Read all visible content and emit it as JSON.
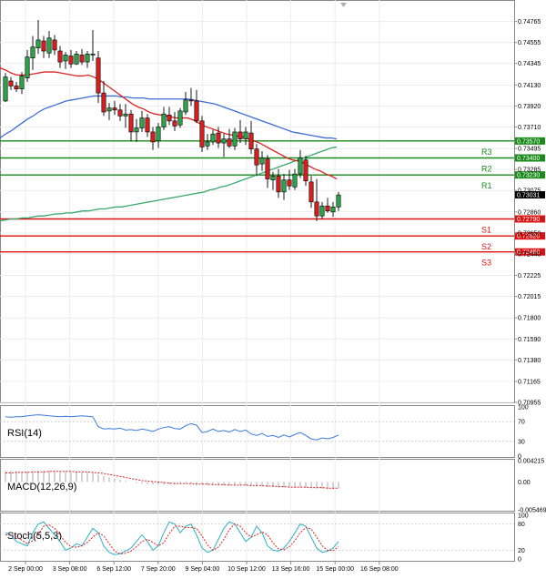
{
  "chart_data": {
    "type": "candlestick",
    "price_axis": {
      "ticks": [
        "0.74765",
        "0.74555",
        "0.74345",
        "0.74130",
        "0.73920",
        "0.73710",
        "0.73495",
        "0.73285",
        "0.73075",
        "0.72860",
        "0.72650",
        "0.72440",
        "0.72225",
        "0.72015",
        "0.71800",
        "0.71590",
        "0.71380",
        "0.71165",
        "0.70955"
      ],
      "range": [
        0.70955,
        0.7498
      ]
    },
    "time_axis": {
      "labels": [
        "2 Sep 00:00",
        "3 Sep 08:00",
        "6 Sep 12:00",
        "7 Sep 20:00",
        "9 Sep 04:00",
        "10 Sep 12:00",
        "13 Sep 16:00",
        "15 Sep 00:00",
        "16 Sep 08:00"
      ]
    },
    "current_price": "0.73031",
    "levels": [
      {
        "name": "R3",
        "value": 0.7357,
        "label": "0.73570",
        "color": "#1a8a1a"
      },
      {
        "name": "R2",
        "value": 0.734,
        "label": "0.73400",
        "color": "#1a8a1a"
      },
      {
        "name": "R1",
        "value": 0.7323,
        "label": "0.73230",
        "color": "#1a8a1a"
      },
      {
        "name": "S1",
        "value": 0.7279,
        "label": "0.72790",
        "color": "#dd1111"
      },
      {
        "name": "S2",
        "value": 0.7262,
        "label": "0.72620",
        "color": "#dd1111"
      },
      {
        "name": "S3",
        "value": 0.7246,
        "label": "0.72460",
        "color": "#dd1111"
      }
    ],
    "candles": [
      [
        0.7397,
        0.7425,
        0.7396,
        0.7421
      ],
      [
        0.7417,
        0.7421,
        0.7408,
        0.7412
      ],
      [
        0.7412,
        0.7416,
        0.7406,
        0.7409
      ],
      [
        0.7409,
        0.7426,
        0.7404,
        0.7422
      ],
      [
        0.742,
        0.7448,
        0.7416,
        0.7441
      ],
      [
        0.744,
        0.7462,
        0.7428,
        0.7451
      ],
      [
        0.745,
        0.7478,
        0.7444,
        0.7458
      ],
      [
        0.7457,
        0.7462,
        0.744,
        0.7447
      ],
      [
        0.7445,
        0.7467,
        0.744,
        0.746
      ],
      [
        0.7458,
        0.7463,
        0.7443,
        0.7448
      ],
      [
        0.7447,
        0.7452,
        0.743,
        0.7436
      ],
      [
        0.7437,
        0.7446,
        0.7429,
        0.7443
      ],
      [
        0.7442,
        0.7448,
        0.743,
        0.7434
      ],
      [
        0.7434,
        0.7447,
        0.7433,
        0.7444
      ],
      [
        0.7443,
        0.7449,
        0.7433,
        0.7436
      ],
      [
        0.7436,
        0.7447,
        0.743,
        0.7444
      ],
      [
        0.7443,
        0.7468,
        0.7437,
        0.7444
      ],
      [
        0.744,
        0.7447,
        0.7395,
        0.7405
      ],
      [
        0.7405,
        0.7417,
        0.7382,
        0.7386
      ],
      [
        0.7387,
        0.7395,
        0.7378,
        0.739
      ],
      [
        0.739,
        0.7397,
        0.7383,
        0.7388
      ],
      [
        0.7388,
        0.7394,
        0.7377,
        0.7382
      ],
      [
        0.7382,
        0.7394,
        0.737,
        0.7384
      ],
      [
        0.7384,
        0.7388,
        0.7357,
        0.7366
      ],
      [
        0.7366,
        0.7379,
        0.7356,
        0.737
      ],
      [
        0.737,
        0.7387,
        0.7366,
        0.738
      ],
      [
        0.738,
        0.7384,
        0.7361,
        0.7366
      ],
      [
        0.7366,
        0.7371,
        0.7348,
        0.7356
      ],
      [
        0.7357,
        0.7375,
        0.735,
        0.7371
      ],
      [
        0.7371,
        0.7391,
        0.7368,
        0.7384
      ],
      [
        0.7383,
        0.7391,
        0.7373,
        0.7377
      ],
      [
        0.7377,
        0.7386,
        0.7367,
        0.7372
      ],
      [
        0.7373,
        0.739,
        0.737,
        0.7387
      ],
      [
        0.7386,
        0.7406,
        0.7383,
        0.7398
      ],
      [
        0.7398,
        0.741,
        0.7392,
        0.7397
      ],
      [
        0.7397,
        0.7408,
        0.7375,
        0.7377
      ],
      [
        0.7377,
        0.7382,
        0.7346,
        0.7351
      ],
      [
        0.7352,
        0.7364,
        0.7348,
        0.7356
      ],
      [
        0.7356,
        0.7368,
        0.7353,
        0.7364
      ],
      [
        0.7365,
        0.7371,
        0.735,
        0.7355
      ],
      [
        0.7355,
        0.7364,
        0.7341,
        0.7359
      ],
      [
        0.7359,
        0.7369,
        0.735,
        0.7352
      ],
      [
        0.7352,
        0.737,
        0.7348,
        0.7366
      ],
      [
        0.7366,
        0.7378,
        0.7355,
        0.7359
      ],
      [
        0.7359,
        0.7371,
        0.7353,
        0.7366
      ],
      [
        0.7365,
        0.7377,
        0.7344,
        0.7349
      ],
      [
        0.7349,
        0.7354,
        0.7322,
        0.7333
      ],
      [
        0.7334,
        0.7347,
        0.7327,
        0.734
      ],
      [
        0.7339,
        0.7343,
        0.731,
        0.7319
      ],
      [
        0.7318,
        0.7326,
        0.7308,
        0.7322
      ],
      [
        0.7322,
        0.7329,
        0.73,
        0.7306
      ],
      [
        0.7306,
        0.7324,
        0.7298,
        0.7318
      ],
      [
        0.7318,
        0.7328,
        0.7308,
        0.7312
      ],
      [
        0.7311,
        0.7329,
        0.7308,
        0.7324
      ],
      [
        0.7324,
        0.7348,
        0.732,
        0.734
      ],
      [
        0.7338,
        0.7342,
        0.7312,
        0.7317
      ],
      [
        0.7316,
        0.7322,
        0.729,
        0.7296
      ],
      [
        0.7296,
        0.7319,
        0.7277,
        0.7282
      ],
      [
        0.7282,
        0.7296,
        0.7279,
        0.7292
      ],
      [
        0.7292,
        0.73,
        0.7285,
        0.7287
      ],
      [
        0.7286,
        0.7296,
        0.7281,
        0.7291
      ],
      [
        0.7291,
        0.7306,
        0.7287,
        0.7303
      ]
    ],
    "sma_red": [
      0.743,
      0.7428,
      0.7425,
      0.7423,
      0.7423,
      0.7423,
      0.7424,
      0.7425,
      0.7426,
      0.7426,
      0.7426,
      0.7425,
      0.7424,
      0.7423,
      0.7422,
      0.7422,
      0.7423,
      0.7421,
      0.7418,
      0.7414,
      0.741,
      0.7406,
      0.7402,
      0.7398,
      0.7394,
      0.7391,
      0.7389,
      0.7386,
      0.7384,
      0.7383,
      0.7382,
      0.7381,
      0.738,
      0.738,
      0.738,
      0.7378,
      0.7375,
      0.7372,
      0.737,
      0.7368,
      0.7366,
      0.7364,
      0.7363,
      0.7362,
      0.7361,
      0.7359,
      0.7357,
      0.7355,
      0.7352,
      0.7349,
      0.7346,
      0.7343,
      0.734,
      0.7338,
      0.7337,
      0.7335,
      0.7332,
      0.7329,
      0.7327,
      0.7324,
      0.7322,
      0.7319
    ],
    "sma_blue": [
      0.736,
      0.7364,
      0.7367,
      0.7371,
      0.7375,
      0.7379,
      0.7382,
      0.7386,
      0.7389,
      0.7391,
      0.7393,
      0.7395,
      0.7397,
      0.7398,
      0.7399,
      0.74,
      0.7401,
      0.7402,
      0.7402,
      0.7402,
      0.7402,
      0.7402,
      0.7401,
      0.7401,
      0.74,
      0.74,
      0.74,
      0.7399,
      0.7399,
      0.7399,
      0.7399,
      0.7399,
      0.7399,
      0.7399,
      0.7399,
      0.7398,
      0.7397,
      0.7396,
      0.7395,
      0.7394,
      0.7392,
      0.739,
      0.7388,
      0.7386,
      0.7384,
      0.7382,
      0.738,
      0.7378,
      0.7376,
      0.7374,
      0.7372,
      0.737,
      0.7368,
      0.7366,
      0.7365,
      0.7364,
      0.7363,
      0.7362,
      0.7361,
      0.736,
      0.736,
      0.7359
    ],
    "sma_green": [
      0.7277,
      0.7278,
      0.7279,
      0.7279,
      0.728,
      0.728,
      0.7281,
      0.7282,
      0.7282,
      0.7283,
      0.7284,
      0.7284,
      0.7285,
      0.7285,
      0.7286,
      0.7287,
      0.7287,
      0.7288,
      0.7289,
      0.7289,
      0.729,
      0.7291,
      0.7291,
      0.7292,
      0.7293,
      0.7294,
      0.7295,
      0.7296,
      0.7297,
      0.7298,
      0.7299,
      0.73,
      0.7301,
      0.7302,
      0.7303,
      0.7304,
      0.7305,
      0.7306,
      0.7308,
      0.7309,
      0.7311,
      0.7312,
      0.7314,
      0.7316,
      0.7318,
      0.732,
      0.7322,
      0.7324,
      0.7326,
      0.7328,
      0.733,
      0.7332,
      0.7334,
      0.7336,
      0.7338,
      0.734,
      0.7342,
      0.7344,
      0.7346,
      0.7348,
      0.735,
      0.7351
    ],
    "rsi": {
      "label": "RSI(14)",
      "ticks": [
        "100",
        "70",
        "30",
        "0"
      ],
      "range": [
        0,
        100
      ],
      "values": [
        80,
        79,
        80,
        80,
        82,
        83,
        84,
        83,
        82,
        81,
        80,
        81,
        80,
        81,
        82,
        81,
        80,
        60,
        55,
        56,
        55,
        57,
        53,
        54,
        52,
        55,
        53,
        50,
        55,
        58,
        60,
        56,
        55,
        62,
        66,
        63,
        48,
        50,
        55,
        50,
        52,
        49,
        54,
        50,
        53,
        45,
        42,
        46,
        40,
        42,
        38,
        43,
        39,
        44,
        48,
        42,
        35,
        33,
        37,
        35,
        38,
        43
      ]
    },
    "macd": {
      "label": "MACD(12,26,9)",
      "ticks": [
        "0.004215",
        "0.00",
        "-0.005469"
      ],
      "range": [
        -0.005469,
        0.004215
      ],
      "histogram": [
        0.0022,
        0.0022,
        0.0021,
        0.0021,
        0.0021,
        0.0021,
        0.0022,
        0.0022,
        0.0022,
        0.0022,
        0.0021,
        0.0021,
        0.002,
        0.002,
        0.0019,
        0.0019,
        0.0018,
        0.0015,
        0.0012,
        0.0009,
        0.0006,
        0.0004,
        0.0002,
        0.0,
        -0.0002,
        -0.0003,
        -0.0004,
        -0.0005,
        -0.0005,
        -0.0005,
        -0.0005,
        -0.0005,
        -0.0004,
        -0.0003,
        -0.0003,
        -0.0004,
        -0.0005,
        -0.0006,
        -0.0006,
        -0.0007,
        -0.0007,
        -0.0007,
        -0.0007,
        -0.0007,
        -0.0007,
        -0.0008,
        -0.0009,
        -0.0009,
        -0.001,
        -0.001,
        -0.0011,
        -0.0011,
        -0.0011,
        -0.0011,
        -0.001,
        -0.0011,
        -0.0012,
        -0.0013,
        -0.0013,
        -0.0014,
        -0.0014,
        -0.0013
      ],
      "signal": [
        0.0018,
        0.0018,
        0.0019,
        0.0019,
        0.0019,
        0.002,
        0.002,
        0.002,
        0.0021,
        0.0021,
        0.0021,
        0.0021,
        0.0021,
        0.002,
        0.002,
        0.002,
        0.0019,
        0.0018,
        0.0017,
        0.0015,
        0.0013,
        0.0011,
        0.0009,
        0.0007,
        0.0005,
        0.0003,
        0.0002,
        0.0001,
        0.0,
        -0.0001,
        -0.0002,
        -0.0003,
        -0.0003,
        -0.0003,
        -0.0003,
        -0.0004,
        -0.0004,
        -0.0004,
        -0.0005,
        -0.0005,
        -0.0005,
        -0.0006,
        -0.0006,
        -0.0006,
        -0.0006,
        -0.0007,
        -0.0007,
        -0.0007,
        -0.0008,
        -0.0008,
        -0.0009,
        -0.0009,
        -0.001,
        -0.001,
        -0.001,
        -0.001,
        -0.0011,
        -0.0011,
        -0.0011,
        -0.0012,
        -0.0012,
        -0.0012
      ]
    },
    "stoch": {
      "label": "Stoch(5,5,3)",
      "ticks": [
        "100",
        "80",
        "20",
        "0"
      ],
      "range": [
        0,
        100
      ],
      "k": [
        60,
        55,
        40,
        35,
        30,
        60,
        80,
        85,
        70,
        55,
        40,
        20,
        25,
        35,
        30,
        50,
        70,
        60,
        30,
        15,
        10,
        12,
        18,
        25,
        40,
        55,
        40,
        20,
        30,
        60,
        85,
        80,
        60,
        75,
        80,
        55,
        25,
        15,
        20,
        45,
        70,
        85,
        80,
        60,
        40,
        50,
        75,
        60,
        30,
        20,
        18,
        25,
        40,
        60,
        80,
        75,
        50,
        25,
        15,
        18,
        25,
        40
      ],
      "d": [
        55,
        56,
        50,
        43,
        35,
        42,
        56,
        75,
        78,
        70,
        55,
        38,
        28,
        27,
        30,
        38,
        50,
        60,
        53,
        35,
        18,
        12,
        13,
        18,
        28,
        40,
        45,
        38,
        30,
        37,
        58,
        75,
        75,
        72,
        72,
        70,
        53,
        32,
        20,
        27,
        45,
        67,
        80,
        75,
        60,
        50,
        55,
        62,
        55,
        37,
        23,
        21,
        28,
        42,
        60,
        72,
        68,
        50,
        30,
        20,
        19,
        28
      ]
    }
  }
}
